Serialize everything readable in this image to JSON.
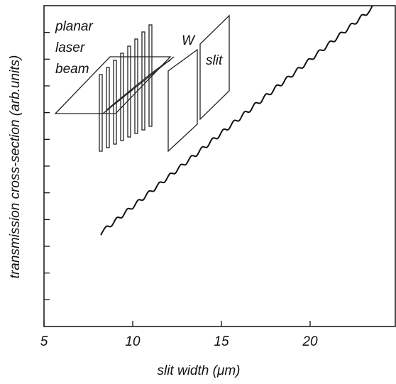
{
  "chart_data": {
    "type": "line",
    "xlabel": "slit width (μm)",
    "ylabel": "transmission cross-section (arb.units)",
    "annotations": [
      "planar",
      "laser",
      "beam",
      "W",
      "slit"
    ],
    "xlim": [
      5,
      24.8
    ],
    "xticks": [
      5,
      10,
      15,
      20
    ],
    "ylim": [
      0,
      12
    ],
    "yticks": [
      1,
      2,
      3,
      4,
      5,
      6,
      7,
      8,
      9,
      10,
      11
    ],
    "ytick_labels": false,
    "x": [
      8.2,
      8.5,
      8.8,
      9.1,
      9.4,
      9.7,
      10.0,
      10.3,
      10.6,
      10.9,
      11.2,
      11.5,
      11.8,
      12.1,
      12.4,
      12.7,
      13.0,
      13.3,
      13.6,
      13.9,
      14.2,
      14.5,
      14.8,
      15.1,
      15.4,
      15.7,
      16.0,
      16.3,
      16.6,
      16.9,
      17.2,
      17.5,
      17.8,
      18.1,
      18.4,
      18.7,
      19.0,
      19.3,
      19.6,
      19.9,
      20.2,
      20.5,
      20.8,
      21.1,
      21.4,
      21.7,
      22.0,
      22.3,
      22.6,
      22.9,
      23.2,
      23.5
    ],
    "series": [
      {
        "color": "#111111",
        "values": [
          3.42,
          3.74,
          3.75,
          4.07,
          4.08,
          4.4,
          4.41,
          4.73,
          4.74,
          5.06,
          5.07,
          5.39,
          5.4,
          5.72,
          5.73,
          6.05,
          6.06,
          6.38,
          6.38,
          6.71,
          6.71,
          7.04,
          7.04,
          7.37,
          7.37,
          7.7,
          7.7,
          8.03,
          8.03,
          8.36,
          8.36,
          8.69,
          8.69,
          9.02,
          9.02,
          9.34,
          9.35,
          9.67,
          9.68,
          10.0,
          10.01,
          10.33,
          10.34,
          10.66,
          10.67,
          10.99,
          11.0,
          11.32,
          11.33,
          11.65,
          11.66,
          11.98
        ]
      }
    ]
  }
}
